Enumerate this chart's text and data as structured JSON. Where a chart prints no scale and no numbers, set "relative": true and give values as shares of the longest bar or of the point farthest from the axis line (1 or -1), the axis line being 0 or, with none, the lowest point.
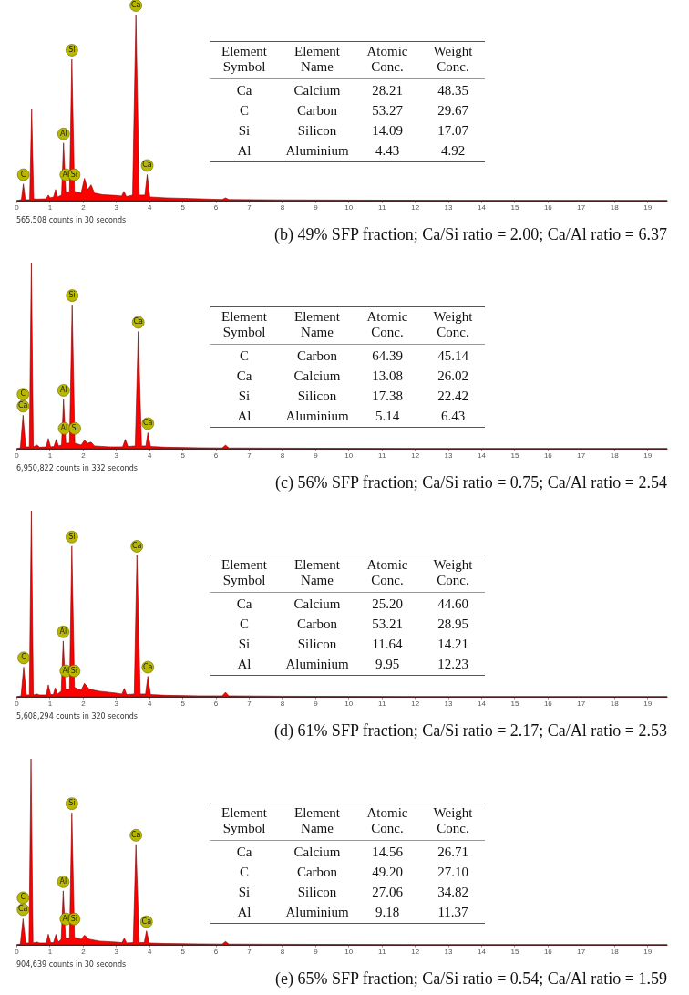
{
  "chart_data": [
    {
      "type": "area",
      "title": "(b) 49% SFP fraction; Ca/Si ratio = 2.00; Ca/Al ratio = 6.37",
      "color": "#ff0000",
      "relative": true,
      "xlim": [
        0,
        19.6
      ],
      "xticks": [
        0,
        1,
        2,
        3,
        4,
        5,
        6,
        7,
        8,
        9,
        10,
        11,
        12,
        13,
        14,
        15,
        16,
        17,
        18,
        19
      ],
      "x": [
        0,
        0.15,
        0.21,
        0.27,
        0.4,
        0.46,
        0.52,
        0.6,
        0.9,
        0.96,
        1.02,
        1.12,
        1.18,
        1.24,
        1.36,
        1.42,
        1.49,
        1.6,
        1.67,
        1.75,
        1.95,
        2.05,
        2.15,
        2.25,
        2.35,
        2.6,
        3.0,
        3.17,
        3.24,
        3.31,
        3.5,
        3.6,
        3.7,
        3.87,
        3.94,
        4.02,
        4.5,
        5.5,
        6.2,
        6.3,
        6.4,
        8,
        12,
        19.6
      ],
      "values": [
        0,
        0.005,
        0.09,
        0.005,
        0.005,
        0.49,
        0.01,
        0.008,
        0.01,
        0.03,
        0.015,
        0.02,
        0.06,
        0.02,
        0.03,
        0.31,
        0.04,
        0.05,
        0.76,
        0.05,
        0.04,
        0.12,
        0.06,
        0.085,
        0.04,
        0.032,
        0.028,
        0.025,
        0.05,
        0.022,
        0.03,
        1.0,
        0.03,
        0.03,
        0.14,
        0.02,
        0.015,
        0.01,
        0.006,
        0.015,
        0.006,
        0.004,
        0.002,
        0.001
      ],
      "annotations": [
        {
          "text": "Ca",
          "x": 3.6,
          "y": 1.0
        },
        {
          "text": "Si",
          "x": 1.67,
          "y": 0.76
        },
        {
          "text": "Al",
          "x": 1.42,
          "y": 0.31
        },
        {
          "text": "C",
          "x": 0.21,
          "y": 0.09
        },
        {
          "text": "Al",
          "x": 1.49,
          "y": 0.09
        },
        {
          "text": "Si",
          "x": 1.74,
          "y": 0.09
        },
        {
          "text": "Ca",
          "x": 3.94,
          "y": 0.14
        },
        "565,508 counts in 30 seconds"
      ]
    },
    {
      "type": "other",
      "annotations": [
        "Element Symbol",
        "Element Name",
        "Atomic Conc.",
        "Weight Conc.",
        "Ca",
        "Calcium",
        "28.21",
        "48.35",
        "C",
        "Carbon",
        "53.27",
        "29.67",
        "Si",
        "Silicon",
        "14.09",
        "17.07",
        "Al",
        "Aluminium",
        "4.43",
        "4.92"
      ]
    },
    {
      "type": "area",
      "title": "(c) 56% SFP fraction; Ca/Si ratio = 0.75; Ca/Al ratio = 2.54",
      "color": "#ff0000",
      "relative": true,
      "xlim": [
        0,
        19.6
      ],
      "xticks": [
        0,
        1,
        2,
        3,
        4,
        5,
        6,
        7,
        8,
        9,
        10,
        11,
        12,
        13,
        14,
        15,
        16,
        17,
        18,
        19
      ],
      "x": [
        0,
        0.12,
        0.2,
        0.28,
        0.39,
        0.45,
        0.51,
        0.62,
        0.7,
        0.9,
        0.96,
        1.03,
        1.13,
        1.2,
        1.27,
        1.36,
        1.42,
        1.49,
        1.6,
        1.68,
        1.76,
        1.95,
        2.05,
        2.15,
        2.25,
        2.35,
        2.8,
        3.2,
        3.28,
        3.36,
        3.58,
        3.67,
        3.77,
        3.9,
        3.96,
        4.04,
        4.5,
        5.5,
        6.2,
        6.3,
        6.4,
        8,
        12,
        19.6
      ],
      "values": [
        0,
        0.005,
        0.18,
        0.01,
        0.01,
        1.0,
        0.01,
        0.02,
        0.008,
        0.01,
        0.055,
        0.01,
        0.012,
        0.05,
        0.015,
        0.02,
        0.265,
        0.03,
        0.03,
        0.774,
        0.03,
        0.02,
        0.045,
        0.03,
        0.035,
        0.015,
        0.01,
        0.01,
        0.05,
        0.012,
        0.015,
        0.63,
        0.015,
        0.015,
        0.086,
        0.012,
        0.008,
        0.005,
        0.004,
        0.019,
        0.004,
        0.003,
        0.001,
        0.001
      ],
      "annotations": [
        {
          "text": "Ca",
          "x": 0.2,
          "y": 0.18
        },
        {
          "text": "C",
          "x": 0.2,
          "y": 0.18
        },
        {
          "text": "Si",
          "x": 1.68,
          "y": 0.774
        },
        {
          "text": "Al",
          "x": 1.42,
          "y": 0.265
        },
        {
          "text": "Al",
          "x": 1.44,
          "y": 0.06
        },
        {
          "text": "Si",
          "x": 1.76,
          "y": 0.06
        },
        {
          "text": "Ca",
          "x": 3.67,
          "y": 0.63
        },
        {
          "text": "Ca",
          "x": 3.96,
          "y": 0.086
        },
        "6,950,822 counts in 332 seconds"
      ]
    },
    {
      "type": "other",
      "annotations": [
        "Element Symbol",
        "Element Name",
        "Atomic Conc.",
        "Weight Conc.",
        "C",
        "Carbon",
        "64.39",
        "45.14",
        "Ca",
        "Calcium",
        "13.08",
        "26.02",
        "Si",
        "Silicon",
        "17.38",
        "22.42",
        "Al",
        "Aluminium",
        "5.14",
        "6.43"
      ]
    },
    {
      "type": "area",
      "title": "(d) 61% SFP fraction; Ca/Si ratio = 2.17; Ca/Al ratio = 2.53",
      "color": "#ff0000",
      "relative": true,
      "xlim": [
        0,
        19.6
      ],
      "xticks": [
        0,
        1,
        2,
        3,
        4,
        5,
        6,
        7,
        8,
        9,
        10,
        11,
        12,
        13,
        14,
        15,
        16,
        17,
        18,
        19
      ],
      "x": [
        0,
        0.14,
        0.22,
        0.3,
        0.39,
        0.45,
        0.51,
        0.62,
        0.7,
        0.9,
        0.96,
        1.03,
        1.11,
        1.17,
        1.24,
        1.35,
        1.41,
        1.48,
        1.6,
        1.67,
        1.75,
        1.95,
        2.05,
        2.2,
        2.5,
        3.0,
        3.18,
        3.25,
        3.32,
        3.55,
        3.63,
        3.73,
        3.89,
        3.96,
        4.04,
        4.5,
        5.5,
        6.2,
        6.3,
        6.4,
        8,
        12,
        19.6
      ],
      "values": [
        0,
        0.005,
        0.16,
        0.01,
        0.01,
        1.0,
        0.01,
        0.015,
        0.01,
        0.01,
        0.064,
        0.012,
        0.012,
        0.048,
        0.015,
        0.03,
        0.3,
        0.04,
        0.04,
        0.81,
        0.05,
        0.035,
        0.072,
        0.04,
        0.03,
        0.02,
        0.015,
        0.045,
        0.012,
        0.015,
        0.76,
        0.015,
        0.015,
        0.11,
        0.012,
        0.008,
        0.005,
        0.005,
        0.024,
        0.005,
        0.003,
        0.001,
        0.001
      ],
      "annotations": [
        {
          "text": "C",
          "x": 0.22,
          "y": 0.16
        },
        {
          "text": "Si",
          "x": 1.67,
          "y": 0.81
        },
        {
          "text": "Al",
          "x": 1.41,
          "y": 0.3
        },
        {
          "text": "Al",
          "x": 1.49,
          "y": 0.09
        },
        {
          "text": "Si",
          "x": 1.74,
          "y": 0.09
        },
        {
          "text": "Ca",
          "x": 3.63,
          "y": 0.76
        },
        {
          "text": "Ca",
          "x": 3.96,
          "y": 0.11
        },
        "5,608,294 counts in 320 seconds"
      ]
    },
    {
      "type": "other",
      "annotations": [
        "Element Symbol",
        "Element Name",
        "Atomic Conc.",
        "Weight Conc.",
        "Ca",
        "Calcium",
        "25.20",
        "44.60",
        "C",
        "Carbon",
        "53.21",
        "28.95",
        "Si",
        "Silicon",
        "11.64",
        "14.21",
        "Al",
        "Aluminium",
        "9.95",
        "12.23"
      ]
    },
    {
      "type": "area",
      "title": "(e) 65% SFP fraction; Ca/Si ratio = 0.54; Ca/Al ratio = 1.59",
      "color": "#ff0000",
      "relative": true,
      "xlim": [
        0,
        19.6
      ],
      "xticks": [
        0,
        1,
        2,
        3,
        4,
        5,
        6,
        7,
        8,
        9,
        10,
        11,
        12,
        13,
        14,
        15,
        16,
        17,
        18,
        19
      ],
      "x": [
        0,
        0.12,
        0.2,
        0.28,
        0.38,
        0.44,
        0.5,
        0.62,
        0.7,
        0.9,
        0.96,
        1.03,
        1.12,
        1.19,
        1.26,
        1.35,
        1.41,
        1.48,
        1.6,
        1.67,
        1.75,
        1.95,
        2.05,
        2.2,
        2.5,
        3.0,
        3.18,
        3.25,
        3.32,
        3.52,
        3.6,
        3.7,
        3.85,
        3.92,
        4.0,
        4.5,
        5.5,
        6.2,
        6.3,
        6.4,
        8,
        12,
        19.6
      ],
      "values": [
        0,
        0.005,
        0.14,
        0.01,
        0.01,
        1.0,
        0.01,
        0.015,
        0.01,
        0.01,
        0.057,
        0.012,
        0.012,
        0.056,
        0.015,
        0.03,
        0.29,
        0.035,
        0.035,
        0.71,
        0.04,
        0.03,
        0.052,
        0.03,
        0.02,
        0.015,
        0.012,
        0.036,
        0.01,
        0.012,
        0.54,
        0.012,
        0.012,
        0.075,
        0.01,
        0.007,
        0.005,
        0.004,
        0.018,
        0.004,
        0.003,
        0.001,
        0.001
      ],
      "annotations": [
        {
          "text": "Ca",
          "x": 0.2,
          "y": 0.14
        },
        {
          "text": "C",
          "x": 0.2,
          "y": 0.14
        },
        {
          "text": "Si",
          "x": 1.67,
          "y": 0.71
        },
        {
          "text": "Al",
          "x": 1.41,
          "y": 0.29
        },
        {
          "text": "Al",
          "x": 1.49,
          "y": 0.09
        },
        {
          "text": "Si",
          "x": 1.74,
          "y": 0.09
        },
        {
          "text": "Ca",
          "x": 3.6,
          "y": 0.54
        },
        {
          "text": "Ca",
          "x": 3.92,
          "y": 0.075
        },
        "904,639 counts in 30 seconds"
      ]
    },
    {
      "type": "other",
      "annotations": [
        "Element Symbol",
        "Element Name",
        "Atomic Conc.",
        "Weight Conc.",
        "Ca",
        "Calcium",
        "14.56",
        "26.71",
        "C",
        "Carbon",
        "49.20",
        "27.10",
        "Si",
        "Silicon",
        "27.06",
        "34.82",
        "Al",
        "Aluminium",
        "9.18",
        "11.37"
      ]
    }
  ]
}
